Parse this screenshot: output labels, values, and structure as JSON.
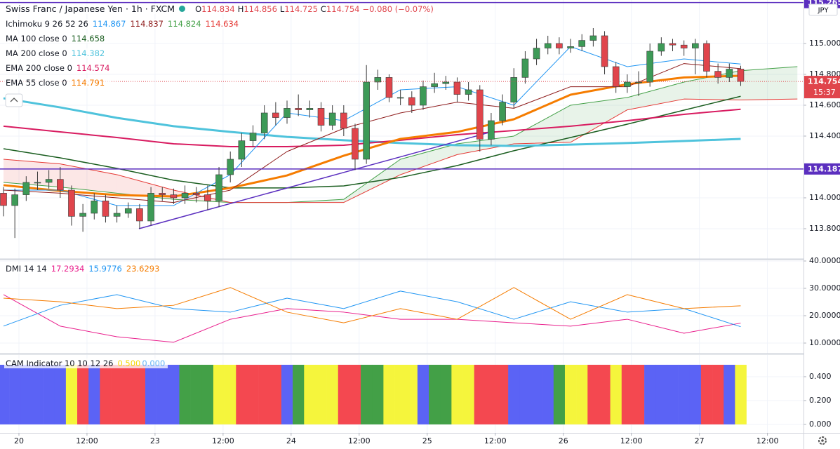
{
  "chart_data": {
    "type": "candlestick",
    "title": "Swiss Franc / Japanese Yen · 1h · FXCM",
    "ohlc_labels": [
      "O",
      "H",
      "L",
      "C"
    ],
    "change": "−0.080 (−0.07%)",
    "countdown": "15:37",
    "currency": "JPY",
    "xlim": [
      -0.309,
      70.54
    ],
    "xticks": [
      {
        "value": 1.36,
        "label": "20"
      },
      {
        "value": 7.36,
        "label": "12:00"
      },
      {
        "value": 13.36,
        "label": "23"
      },
      {
        "value": 19.36,
        "label": "12:00"
      },
      {
        "value": 25.36,
        "label": "24"
      },
      {
        "value": 31.36,
        "label": "12:00"
      },
      {
        "value": 37.36,
        "label": "25"
      },
      {
        "value": 43.36,
        "label": "12:00"
      },
      {
        "value": 49.36,
        "label": "26"
      },
      {
        "value": 55.36,
        "label": "12:00"
      },
      {
        "value": 61.36,
        "label": "27"
      },
      {
        "value": 67.36,
        "label": "12:00"
      }
    ],
    "ylim": [
      113.609,
      115.259
    ],
    "yticks": [
      {
        "value": 113.8,
        "label": "113.800"
      },
      {
        "value": 114,
        "label": "114.000"
      },
      {
        "value": 114.4,
        "label": "114.400"
      },
      {
        "value": 114.6,
        "label": "114.600"
      },
      {
        "value": 114.8,
        "label": "114.800"
      },
      {
        "value": 115,
        "label": "115.000"
      }
    ],
    "grid": true,
    "up_color": "#3d9a57",
    "down_color": "#e0454c",
    "candles": {
      "open": [
        114.03,
        113.95,
        114.02,
        114.1,
        114.1,
        114.12,
        114.05,
        113.88,
        113.9,
        113.98,
        113.88,
        113.9,
        113.93,
        113.85,
        114.03,
        114.02,
        114.0,
        114.03,
        114.02,
        113.98,
        114.15,
        114.25,
        114.37,
        114.42,
        114.55,
        114.52,
        114.58,
        114.57,
        114.58,
        114.47,
        114.55,
        114.45,
        114.25,
        114.75,
        114.78,
        114.65,
        114.65,
        114.6,
        114.72,
        114.74,
        114.75,
        114.67,
        114.7,
        114.38,
        114.5,
        114.62,
        114.78,
        114.9,
        114.97,
        115.0,
        114.97,
        114.98,
        115.02,
        115.05,
        114.85,
        114.72,
        114.75,
        114.75,
        114.95,
        115.0,
        114.99,
        114.97,
        115.0,
        114.82,
        114.78,
        114.834
      ],
      "high": [
        114.07,
        114.06,
        114.14,
        114.17,
        114.18,
        114.2,
        114.08,
        113.96,
        114.03,
        114.02,
        113.95,
        113.97,
        113.96,
        114.07,
        114.07,
        114.06,
        114.08,
        114.07,
        114.08,
        114.2,
        114.3,
        114.42,
        114.47,
        114.6,
        114.62,
        114.63,
        114.67,
        114.63,
        114.62,
        114.6,
        114.6,
        114.48,
        114.86,
        114.83,
        114.8,
        114.7,
        114.69,
        114.76,
        114.81,
        114.79,
        114.78,
        114.75,
        114.73,
        114.55,
        114.67,
        114.84,
        114.95,
        115.03,
        115.05,
        115.04,
        115.03,
        115.06,
        115.1,
        115.08,
        114.88,
        114.8,
        114.82,
        115.0,
        115.04,
        115.03,
        115.02,
        115.03,
        115.02,
        114.87,
        114.87,
        114.856
      ],
      "low": [
        113.88,
        113.74,
        113.98,
        114.05,
        114.06,
        114.0,
        113.82,
        113.78,
        113.86,
        113.84,
        113.84,
        113.87,
        113.8,
        113.82,
        113.98,
        113.96,
        113.96,
        113.97,
        113.92,
        113.94,
        114.1,
        114.2,
        114.33,
        114.38,
        114.47,
        114.48,
        114.53,
        114.52,
        114.43,
        114.44,
        114.4,
        114.18,
        114.22,
        114.7,
        114.62,
        114.6,
        114.55,
        114.57,
        114.68,
        114.7,
        114.62,
        114.63,
        114.3,
        114.34,
        114.47,
        114.58,
        114.74,
        114.86,
        114.93,
        114.93,
        114.94,
        114.95,
        114.98,
        114.8,
        114.68,
        114.68,
        114.66,
        114.72,
        114.92,
        114.95,
        114.92,
        114.8,
        114.78,
        114.74,
        114.75,
        114.725
      ],
      "close": [
        113.95,
        114.02,
        114.1,
        114.1,
        114.12,
        114.05,
        113.88,
        113.9,
        113.98,
        113.88,
        113.9,
        113.93,
        113.85,
        114.03,
        114.02,
        114.0,
        114.03,
        114.02,
        113.98,
        114.15,
        114.25,
        114.37,
        114.42,
        114.55,
        114.52,
        114.58,
        114.57,
        114.58,
        114.47,
        114.55,
        114.45,
        114.25,
        114.75,
        114.78,
        114.65,
        114.65,
        114.6,
        114.72,
        114.74,
        114.75,
        114.67,
        114.7,
        114.38,
        114.5,
        114.62,
        114.78,
        114.9,
        114.97,
        115.0,
        114.97,
        114.98,
        115.02,
        115.05,
        114.85,
        114.72,
        114.75,
        114.75,
        114.95,
        115.0,
        114.99,
        114.97,
        115.0,
        114.82,
        114.78,
        114.834,
        114.754
      ]
    },
    "line_x": [
      0,
      5,
      10,
      15,
      20,
      25,
      30,
      35,
      40,
      45,
      50,
      55,
      60,
      65
    ],
    "ichimoku": {
      "name": "Ichimoku 9 26 52 26",
      "lines": [
        {
          "color": "#2196f3",
          "values": [
            114.05,
            114.05,
            113.95,
            113.95,
            114.15,
            114.55,
            114.5,
            114.7,
            114.72,
            114.6,
            114.98,
            114.85,
            114.9,
            114.867
          ]
        },
        {
          "color": "#8e1b1b",
          "values": [
            114.05,
            114.03,
            114.0,
            113.97,
            114.05,
            114.3,
            114.45,
            114.55,
            114.62,
            114.58,
            114.72,
            114.72,
            114.87,
            114.837
          ]
        }
      ],
      "cloud": {
        "x": [
          0,
          5,
          10,
          15,
          20,
          25,
          30,
          35,
          40,
          45,
          50,
          55,
          60,
          65,
          70
        ],
        "span_a": {
          "color": "#43a047",
          "values": [
            114.1,
            114.07,
            114.03,
            113.99,
            113.97,
            113.97,
            113.99,
            114.25,
            114.35,
            114.4,
            114.6,
            114.65,
            114.75,
            114.824,
            114.85
          ]
        },
        "span_b": {
          "color": "#e53935",
          "values": [
            114.25,
            114.22,
            114.15,
            114.05,
            113.97,
            113.97,
            113.97,
            114.15,
            114.28,
            114.35,
            114.36,
            114.57,
            114.64,
            114.634,
            114.64
          ]
        }
      }
    },
    "lines": [
      {
        "name": "MA 100 close 0",
        "color": "#1b5e20",
        "width": 1.5,
        "values": [
          114.318,
          114.259,
          114.191,
          114.114,
          114.064,
          114.064,
          114.077,
          114.132,
          114.209,
          114.305,
          114.391,
          114.477,
          114.568,
          114.658
        ]
      },
      {
        "name": "MA 200 close 0",
        "color": "#4fc3dc",
        "width": 3,
        "values": [
          114.645,
          114.586,
          114.518,
          114.464,
          114.427,
          114.395,
          114.373,
          114.355,
          114.341,
          114.336,
          114.345,
          114.355,
          114.368,
          114.382
        ]
      },
      {
        "name": "EMA 200 close 0",
        "color": "#d81b60",
        "width": 2,
        "values": [
          114.464,
          114.427,
          114.391,
          114.35,
          114.332,
          114.332,
          114.341,
          114.373,
          114.409,
          114.436,
          114.464,
          114.5,
          114.541,
          114.574
        ]
      },
      {
        "name": "EMA 55 close 0",
        "color": "#f57c00",
        "width": 3,
        "values": [
          114.082,
          114.045,
          114.018,
          114.009,
          114.064,
          114.145,
          114.273,
          114.382,
          114.427,
          114.509,
          114.668,
          114.736,
          114.78,
          114.791
        ]
      }
    ],
    "hlines": [
      {
        "value": 114.187,
        "color": "#5b2fbf"
      },
      {
        "value": 115.265,
        "color": "#5b2fbf"
      }
    ],
    "trendline": {
      "x": [
        11.94,
        43.0
      ],
      "values": [
        113.8,
        114.427
      ],
      "color": "#5b2fbf"
    },
    "dmi": {
      "name": "DMI 14 14",
      "ylim": [
        6.41,
        40.26
      ],
      "yticks": [
        {
          "value": 10,
          "label": "10.0000"
        },
        {
          "value": 20,
          "label": "20.0000"
        },
        {
          "value": 30,
          "label": "30.0000"
        },
        {
          "value": 40,
          "label": "40.0000"
        }
      ],
      "series": [
        {
          "color": "#e91e8c",
          "values": [
            27.7,
            16.2,
            12.3,
            10.3,
            18.7,
            22.6,
            21.3,
            18.7,
            18.7,
            17.4,
            16.2,
            18.7,
            13.6,
            17.2934
          ]
        },
        {
          "color": "#2196f3",
          "values": [
            16.2,
            23.8,
            27.7,
            22.6,
            21.3,
            26.4,
            22.6,
            29.0,
            25.1,
            18.7,
            25.1,
            21.3,
            22.6,
            15.9776
          ]
        },
        {
          "color": "#f57c00",
          "values": [
            26.4,
            25.1,
            22.6,
            23.8,
            30.3,
            21.3,
            17.4,
            22.6,
            18.7,
            30.3,
            18.7,
            27.7,
            22.6,
            23.6293
          ]
        }
      ]
    },
    "cam": {
      "name": "CAM Indicator 10 10 12 26",
      "legend_values": [
        {
          "text": "0.500",
          "color": "#f5d90a"
        },
        {
          "text": "0.000",
          "color": "#64b5f6"
        }
      ],
      "ylim": [
        -0.065,
        0.582
      ],
      "yticks": [
        {
          "value": 0,
          "label": "0.000"
        },
        {
          "value": 0.2,
          "label": "0.200"
        },
        {
          "value": 0.4,
          "label": "0.400"
        }
      ],
      "values": [
        0.5,
        0.5,
        0.5,
        0.5,
        0.5,
        0.5,
        0.5,
        0.5,
        0.5,
        0.5,
        0.5,
        0.5,
        0.5,
        0.5,
        0.5,
        0.5,
        0.5,
        0.5,
        0.5,
        0.5,
        0.5,
        0.5,
        0.5,
        0.5,
        0.5,
        0.5,
        0.5,
        0.5,
        0.5,
        0.5,
        0.5,
        0.5,
        0.5,
        0.5,
        0.5,
        0.5,
        0.5,
        0.5,
        0.5,
        0.5,
        0.5,
        0.5,
        0.5,
        0.5,
        0.5,
        0.5,
        0.5,
        0.5,
        0.5,
        0.5,
        0.5,
        0.5,
        0.5,
        0.5,
        0.5,
        0.5,
        0.5,
        0.5,
        0.5,
        0.5,
        0.5,
        0.5,
        0.5,
        0.5,
        0.5,
        0.5
      ],
      "colors": [
        "#5b63f5",
        "#5b63f5",
        "#5b63f5",
        "#5b63f5",
        "#5b63f5",
        "#5b63f5",
        "#f5f53c",
        "#f44850",
        "#5b63f5",
        "#f44850",
        "#f44850",
        "#f44850",
        "#f44850",
        "#5b63f5",
        "#5b63f5",
        "#5b63f5",
        "#43a047",
        "#43a047",
        "#43a047",
        "#f5f53c",
        "#f5f53c",
        "#f44850",
        "#f44850",
        "#f44850",
        "#f44850",
        "#5b63f5",
        "#43a047",
        "#f5f53c",
        "#f5f53c",
        "#f5f53c",
        "#f44850",
        "#f44850",
        "#43a047",
        "#43a047",
        "#f5f53c",
        "#f5f53c",
        "#f5f53c",
        "#5b63f5",
        "#43a047",
        "#43a047",
        "#f5f53c",
        "#f5f53c",
        "#f44850",
        "#f44850",
        "#f44850",
        "#5b63f5",
        "#5b63f5",
        "#5b63f5",
        "#5b63f5",
        "#43a047",
        "#f5f53c",
        "#f5f53c",
        "#f44850",
        "#f44850",
        "#f5f53c",
        "#f44850",
        "#f44850",
        "#5b63f5",
        "#5b63f5",
        "#5b63f5",
        "#5b63f5",
        "#5b63f5",
        "#f44850",
        "#f44850",
        "#5b63f5",
        "#f5f53c"
      ]
    }
  }
}
